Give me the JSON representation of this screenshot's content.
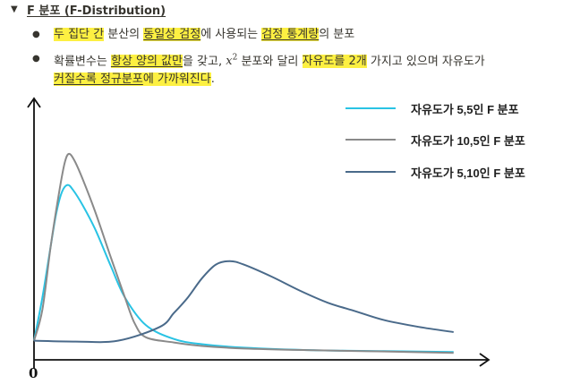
{
  "toggle": {
    "icon": "triangle-down-icon",
    "title": "F 분포 (F-Distribution)"
  },
  "bullet1": {
    "parts": [
      "두 집단 간",
      " 분산의 ",
      "동일성 검정",
      "에 사용되는 ",
      "검정 통계량",
      "의 분포"
    ]
  },
  "bullet2": {
    "line1": [
      "확률변수는 ",
      "항상 양의 값만",
      "을 갖고, ",
      "x",
      "2",
      " 분포와 달리 ",
      "자유도를 2개",
      " 가지고 있으며 자유도가"
    ],
    "line2": [
      "커질수록 정규분포",
      "에 가까워진다",
      "."
    ]
  },
  "chart_data": {
    "type": "line",
    "title": "",
    "xlabel": "",
    "ylabel": "",
    "origin_label": "0",
    "grid": false,
    "legend_position": "top-right",
    "series": [
      {
        "name": "자유도가 5,5인 F 분포",
        "color": "#29c3e4",
        "points": [
          [
            0,
            0.1
          ],
          [
            0.06,
            0.35
          ],
          [
            0.12,
            0.65
          ],
          [
            0.16,
            0.84
          ],
          [
            0.2,
            0.96
          ],
          [
            0.24,
            1.0
          ],
          [
            0.28,
            0.97
          ],
          [
            0.35,
            0.88
          ],
          [
            0.44,
            0.74
          ],
          [
            0.55,
            0.53
          ],
          [
            0.65,
            0.35
          ],
          [
            0.8,
            0.19
          ],
          [
            1.0,
            0.11
          ],
          [
            1.2,
            0.08
          ],
          [
            1.5,
            0.06
          ],
          [
            2.0,
            0.045
          ],
          [
            2.5,
            0.04
          ],
          [
            3.0,
            0.035
          ]
        ]
      },
      {
        "name": "자유도가 10,5인 F 분포",
        "color": "#8a8a8a",
        "points": [
          [
            0,
            0.1
          ],
          [
            0.06,
            0.28
          ],
          [
            0.12,
            0.65
          ],
          [
            0.18,
            0.96
          ],
          [
            0.22,
            1.13
          ],
          [
            0.25,
            1.18
          ],
          [
            0.29,
            1.14
          ],
          [
            0.35,
            1.03
          ],
          [
            0.44,
            0.84
          ],
          [
            0.55,
            0.58
          ],
          [
            0.65,
            0.35
          ],
          [
            0.72,
            0.2
          ],
          [
            0.8,
            0.12
          ],
          [
            1.0,
            0.09
          ],
          [
            1.2,
            0.07
          ],
          [
            1.5,
            0.055
          ],
          [
            2.0,
            0.045
          ],
          [
            2.5,
            0.038
          ],
          [
            3.0,
            0.03
          ]
        ]
      },
      {
        "name": "자유도가 5,10인 F 분포",
        "color": "#4a6a8a",
        "points": [
          [
            0,
            0.1
          ],
          [
            0.3,
            0.095
          ],
          [
            0.6,
            0.1
          ],
          [
            0.9,
            0.18
          ],
          [
            1.0,
            0.26
          ],
          [
            1.1,
            0.35
          ],
          [
            1.2,
            0.46
          ],
          [
            1.3,
            0.54
          ],
          [
            1.4,
            0.56
          ],
          [
            1.5,
            0.54
          ],
          [
            1.7,
            0.47
          ],
          [
            1.9,
            0.39
          ],
          [
            2.1,
            0.32
          ],
          [
            2.3,
            0.27
          ],
          [
            2.5,
            0.22
          ],
          [
            2.75,
            0.18
          ],
          [
            3.0,
            0.15
          ]
        ]
      }
    ],
    "xlim": [
      0,
      3.2
    ],
    "ylim": [
      0,
      1.5
    ]
  }
}
